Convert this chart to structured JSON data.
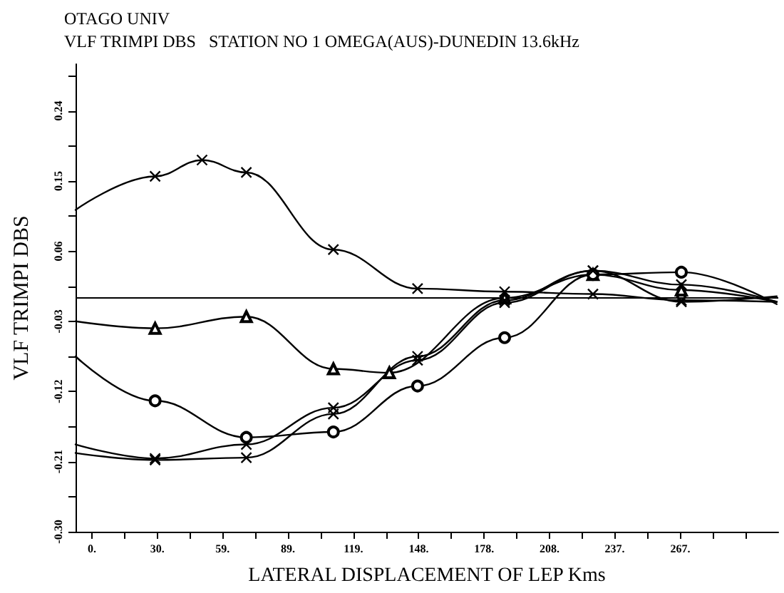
{
  "chart_data": {
    "type": "line",
    "title": "OTAGO UNIV",
    "subtitle": "VLF TRIMPI DBS   STATION NO 1 OMEGA(AUS)-DUNEDIN 13.6kHz",
    "xlabel": "LATERAL DISPLACEMENT OF LEP Kms",
    "ylabel": "VLF TRIMPI DBS",
    "xlim": [
      -7.4,
      311.5
    ],
    "xticks": [
      {
        "value": 0,
        "label": "0."
      },
      {
        "value": 14.8,
        "label": null
      },
      {
        "value": 29.7,
        "label": "30."
      },
      {
        "value": 44.5,
        "label": null
      },
      {
        "value": 59.3,
        "label": "59."
      },
      {
        "value": 74.2,
        "label": null
      },
      {
        "value": 89,
        "label": "89."
      },
      {
        "value": 103.8,
        "label": null
      },
      {
        "value": 118.7,
        "label": "119."
      },
      {
        "value": 133.5,
        "label": null
      },
      {
        "value": 148.3,
        "label": "148."
      },
      {
        "value": 163.2,
        "label": null
      },
      {
        "value": 178,
        "label": "178."
      },
      {
        "value": 192.8,
        "label": null
      },
      {
        "value": 207.7,
        "label": "208."
      },
      {
        "value": 222.5,
        "label": null
      },
      {
        "value": 237.3,
        "label": "237."
      },
      {
        "value": 252.2,
        "label": null
      },
      {
        "value": 267,
        "label": "267."
      },
      {
        "value": 281.8,
        "label": null
      },
      {
        "value": 296.7,
        "label": null
      }
    ],
    "ylim": [
      -0.3,
      0.3
    ],
    "yticks": [
      {
        "value": -0.3,
        "label": "-0.30"
      },
      {
        "value": -0.255,
        "label": null
      },
      {
        "value": -0.21,
        "label": "-0.21"
      },
      {
        "value": -0.165,
        "label": null
      },
      {
        "value": -0.12,
        "label": "-0.12"
      },
      {
        "value": -0.075,
        "label": null
      },
      {
        "value": -0.03,
        "label": "-0.03"
      },
      {
        "value": 0.015,
        "label": null
      },
      {
        "value": 0.06,
        "label": "0.06"
      },
      {
        "value": 0.105,
        "label": null
      },
      {
        "value": 0.15,
        "label": "0.15"
      },
      {
        "value": 0.195,
        "label": null
      },
      {
        "value": 0.24,
        "label": "0.24"
      },
      {
        "value": 0.285,
        "label": null
      }
    ],
    "grid": false,
    "ref_lines": [
      {
        "axis": "y",
        "value": 0,
        "color": "#000000"
      }
    ],
    "series": [
      {
        "color": "#000000",
        "marker": "cross",
        "x": [
          -7.4,
          28.7,
          50,
          70.1,
          109.6,
          147.8,
          187.3,
          227.4,
          267.5,
          310.8
        ],
        "values": [
          0.113,
          0.156,
          0.177,
          0.161,
          0.062,
          0.012,
          0.008,
          0.005,
          -0.003,
          -0.005
        ]
      },
      {
        "color": "#000000",
        "marker": "triangle",
        "x": [
          -7.4,
          28.7,
          70.1,
          109.6,
          135,
          187.3,
          227.4,
          267.5,
          310.8
        ],
        "values": [
          -0.03,
          -0.039,
          -0.024,
          -0.091,
          -0.096,
          0.0,
          0.03,
          0.01,
          -0.005
        ]
      },
      {
        "color": "#000000",
        "marker": "circle",
        "x": [
          -7.4,
          28.7,
          70.1,
          109.6,
          147.8,
          187.3,
          227.4,
          267.5,
          310.8
        ],
        "values": [
          -0.075,
          -0.132,
          -0.179,
          -0.172,
          -0.113,
          -0.051,
          0.03,
          0.033,
          -0.008
        ]
      },
      {
        "color": "#000000",
        "marker": "cross",
        "x": [
          -7.4,
          28.7,
          70.1,
          109.6,
          147.8,
          187.3,
          227.4,
          267.5,
          310.8
        ],
        "values": [
          -0.199,
          -0.208,
          -0.205,
          -0.149,
          -0.075,
          -0.003,
          0.035,
          0.017,
          -0.005
        ]
      },
      {
        "color": "#000000",
        "marker": "cross",
        "x": [
          -7.4,
          28.7,
          70.1,
          109.6,
          147.8,
          187.3,
          227.4,
          267.5,
          310.8
        ],
        "values": [
          -0.188,
          -0.206,
          -0.188,
          -0.141,
          -0.08,
          -0.006,
          0.035,
          -0.005,
          0.002
        ]
      }
    ]
  }
}
